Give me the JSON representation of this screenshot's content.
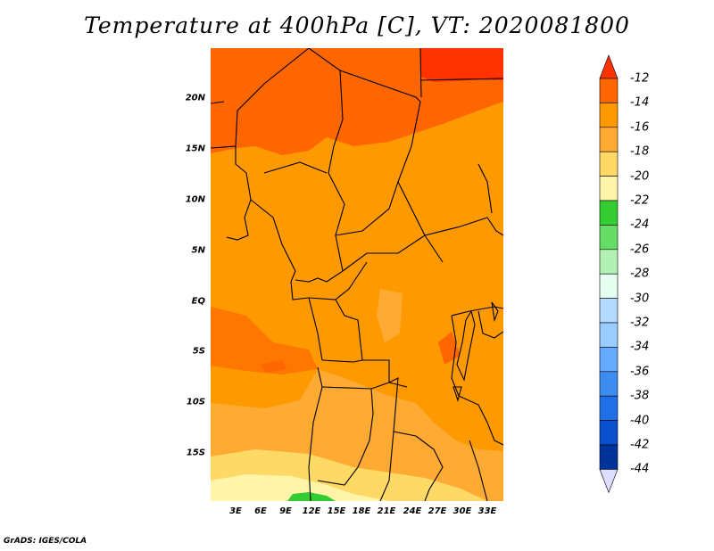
{
  "title": "Temperature at 400hPa [C], VT: 2020081800",
  "credit": "GrADS: IGES/COLA",
  "y_axis_labels": [
    "20N",
    "15N",
    "10N",
    "5N",
    "EQ",
    "5S",
    "10S",
    "15S"
  ],
  "x_axis_labels": [
    "3E",
    "6E",
    "9E",
    "12E",
    "15E",
    "18E",
    "21E",
    "24E",
    "27E",
    "30E",
    "33E"
  ],
  "colorbar": {
    "labels": [
      "-12",
      "-14",
      "-16",
      "-18",
      "-20",
      "-22",
      "-24",
      "-26",
      "-28",
      "-30",
      "-32",
      "-34",
      "-36",
      "-38",
      "-40",
      "-42",
      "-44"
    ],
    "colors": [
      "#ff3300",
      "#ff6600",
      "#ff9900",
      "#ffaa33",
      "#ffd966",
      "#fff5a8",
      "#33cc33",
      "#66dd66",
      "#b3f0b3",
      "#e6fff0",
      "#b3d9ff",
      "#99ccff",
      "#66aaff",
      "#3d8cf0",
      "#1f6fe6",
      "#0a4fcc",
      "#003399",
      "#0a0a66"
    ],
    "top_arrow_color": "#ff3300",
    "bottom_arrow_color": "#ddddff"
  },
  "colors": {
    "bg": "#ffffff",
    "base_field": "#ff9900",
    "warm_field": "#ff6600",
    "hot_field": "#ff3300",
    "light_field": "#ffaa33",
    "pale_field": "#ffd966",
    "very_pale_field": "#fff5a8",
    "green_field": "#33cc33",
    "borders": "#000000"
  }
}
